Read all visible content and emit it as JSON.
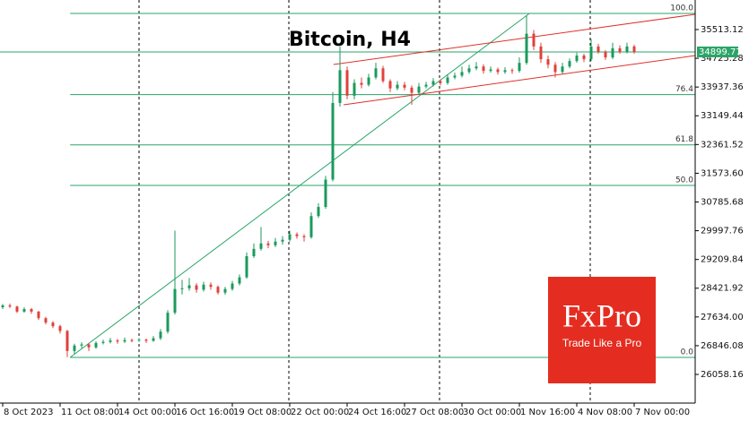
{
  "chart_data": {
    "type": "candlestick",
    "title": "Bitcoin, H4",
    "colors": {
      "up": "#1b9a5c",
      "down": "#e0413a",
      "fib": "#2aa568",
      "channel": "#e0302a",
      "price_line": "#2aa568"
    },
    "xlim": [
      -0.375,
      96.5
    ],
    "ylim": [
      25272.3,
      36323.5
    ],
    "xticks": [
      {
        "value": 0,
        "label": "8 Oct 2023"
      },
      {
        "value": 8,
        "label": "11 Oct 08:00"
      },
      {
        "value": 16,
        "label": "14 Oct 00:00"
      },
      {
        "value": 24,
        "label": "16 Oct 16:00"
      },
      {
        "value": 32,
        "label": "19 Oct 08:00"
      },
      {
        "value": 40,
        "label": "22 Oct 00:00"
      },
      {
        "value": 48,
        "label": "24 Oct 16:00"
      },
      {
        "value": 56,
        "label": "27 Oct 08:00"
      },
      {
        "value": 64,
        "label": "30 Oct 00:00"
      },
      {
        "value": 72,
        "label": "1 Nov 16:00"
      },
      {
        "value": 80,
        "label": "4 Nov 08:00"
      },
      {
        "value": 88,
        "label": "7 Nov 00:00"
      }
    ],
    "yticks": [
      35513.12,
      34725.28,
      33937.36,
      33149.44,
      32361.52,
      {
        "value": 31573.6,
        "label": "31573.60"
      },
      30785.68,
      29997.76,
      29209.84,
      28421.92,
      {
        "value": 27634,
        "label": "27634.00"
      },
      26846.08,
      26058.16
    ],
    "separators": [
      19,
      39.875,
      60.875,
      81.875
    ],
    "last_price": 34899.77,
    "fib": {
      "low": 26525,
      "high": 35955,
      "levels": [
        {
          "value": 100,
          "label": "100.0"
        },
        {
          "value": 76.4,
          "label": "76.4"
        },
        {
          "value": 61.8,
          "label": "61.8"
        },
        {
          "value": 50,
          "label": "50.0"
        },
        {
          "value": 0,
          "label": "0.0"
        }
      ]
    },
    "trendline": {
      "x": [
        9.4,
        73.4
      ],
      "y": [
        26525,
        35955
      ]
    },
    "channel_upper": {
      "x": [
        46.1,
        96.5
      ],
      "y": [
        34555,
        35930
      ]
    },
    "channel_lower": {
      "x": [
        47.5,
        96.5
      ],
      "y": [
        33450,
        34800
      ]
    },
    "watermark": {
      "brand": "FxPro",
      "tagline": "Trade Like a Pro"
    },
    "ohlc": [
      [
        27900,
        27990,
        27850,
        27950
      ],
      [
        27950,
        28000,
        27880,
        27920
      ],
      [
        27920,
        27940,
        27740,
        27780
      ],
      [
        27780,
        27900,
        27750,
        27850
      ],
      [
        27850,
        27880,
        27720,
        27780
      ],
      [
        27780,
        27800,
        27550,
        27600
      ],
      [
        27600,
        27640,
        27430,
        27480
      ],
      [
        27480,
        27520,
        27330,
        27380
      ],
      [
        27380,
        27420,
        27180,
        27250
      ],
      [
        27250,
        27280,
        26530,
        26700
      ],
      [
        26700,
        26900,
        26620,
        26850
      ],
      [
        26850,
        26940,
        26780,
        26880
      ],
      [
        26880,
        26920,
        26700,
        26800
      ],
      [
        26800,
        26970,
        26760,
        26920
      ],
      [
        26920,
        27010,
        26880,
        26950
      ],
      [
        26950,
        27060,
        26910,
        26990
      ],
      [
        26990,
        27030,
        26900,
        26960
      ],
      [
        26960,
        27070,
        26920,
        27000
      ],
      [
        27000,
        27040,
        26940,
        26990
      ],
      [
        26990,
        27060,
        26950,
        27010
      ],
      [
        27010,
        27040,
        26920,
        26980
      ],
      [
        26980,
        27110,
        26950,
        27050
      ],
      [
        27050,
        27300,
        27000,
        27230
      ],
      [
        27230,
        27820,
        27180,
        27750
      ],
      [
        27750,
        30000,
        27700,
        28400
      ],
      [
        28400,
        28650,
        28250,
        28420
      ],
      [
        28420,
        28700,
        28350,
        28500
      ],
      [
        28500,
        28560,
        28300,
        28380
      ],
      [
        28380,
        28600,
        28330,
        28520
      ],
      [
        28520,
        28580,
        28380,
        28460
      ],
      [
        28460,
        28500,
        28250,
        28300
      ],
      [
        28300,
        28460,
        28240,
        28400
      ],
      [
        28400,
        28620,
        28350,
        28550
      ],
      [
        28550,
        28800,
        28500,
        28720
      ],
      [
        28720,
        29400,
        28680,
        29300
      ],
      [
        29300,
        29650,
        29250,
        29500
      ],
      [
        29500,
        30100,
        29450,
        29650
      ],
      [
        29650,
        29720,
        29520,
        29600
      ],
      [
        29600,
        29800,
        29550,
        29700
      ],
      [
        29700,
        29850,
        29620,
        29750
      ],
      [
        29750,
        30000,
        29700,
        29900
      ],
      [
        29900,
        29950,
        29780,
        29850
      ],
      [
        29850,
        29900,
        29700,
        29820
      ],
      [
        29820,
        30500,
        29780,
        30400
      ],
      [
        30400,
        30750,
        30350,
        30650
      ],
      [
        30650,
        31500,
        30600,
        31400
      ],
      [
        31400,
        33800,
        31350,
        33500
      ],
      [
        33500,
        35050,
        33400,
        34400
      ],
      [
        34400,
        34500,
        33600,
        33700
      ],
      [
        33700,
        34150,
        33600,
        34050
      ],
      [
        34050,
        34200,
        33900,
        34000
      ],
      [
        34000,
        34300,
        33950,
        34200
      ],
      [
        34200,
        34600,
        34150,
        34450
      ],
      [
        34450,
        34520,
        34050,
        34100
      ],
      [
        34100,
        34150,
        33800,
        33900
      ],
      [
        33900,
        34100,
        33850,
        34000
      ],
      [
        34000,
        34080,
        33850,
        33920
      ],
      [
        33920,
        33980,
        33450,
        33780
      ],
      [
        33780,
        34050,
        33720,
        33950
      ],
      [
        33950,
        34080,
        33900,
        34000
      ],
      [
        34000,
        34180,
        33950,
        34100
      ],
      [
        34100,
        34150,
        33980,
        34050
      ],
      [
        34050,
        34280,
        34000,
        34200
      ],
      [
        34200,
        34330,
        34150,
        34250
      ],
      [
        34250,
        34500,
        34200,
        34350
      ],
      [
        34350,
        34550,
        34300,
        34450
      ],
      [
        34450,
        34620,
        34400,
        34500
      ],
      [
        34500,
        34560,
        34300,
        34380
      ],
      [
        34380,
        34500,
        34330,
        34420
      ],
      [
        34420,
        34470,
        34280,
        34350
      ],
      [
        34350,
        34480,
        34300,
        34400
      ],
      [
        34400,
        34450,
        34300,
        34380
      ],
      [
        34380,
        34750,
        34330,
        34600
      ],
      [
        34600,
        35900,
        34550,
        35400
      ],
      [
        35400,
        35500,
        34950,
        35050
      ],
      [
        35050,
        35150,
        34600,
        34700
      ],
      [
        34700,
        34800,
        34450,
        34550
      ],
      [
        34550,
        34620,
        34200,
        34350
      ],
      [
        34350,
        34600,
        34300,
        34500
      ],
      [
        34500,
        34720,
        34450,
        34650
      ],
      [
        34650,
        34880,
        34600,
        34800
      ],
      [
        34800,
        34850,
        34620,
        34700
      ],
      [
        34700,
        35250,
        34650,
        35050
      ],
      [
        35050,
        35120,
        34850,
        34900
      ],
      [
        34900,
        34950,
        34680,
        34750
      ],
      [
        34750,
        35150,
        34700,
        35000
      ],
      [
        35000,
        35080,
        34850,
        34900
      ],
      [
        34900,
        35150,
        34860,
        35050
      ],
      [
        35050,
        35100,
        34850,
        34900
      ]
    ]
  }
}
